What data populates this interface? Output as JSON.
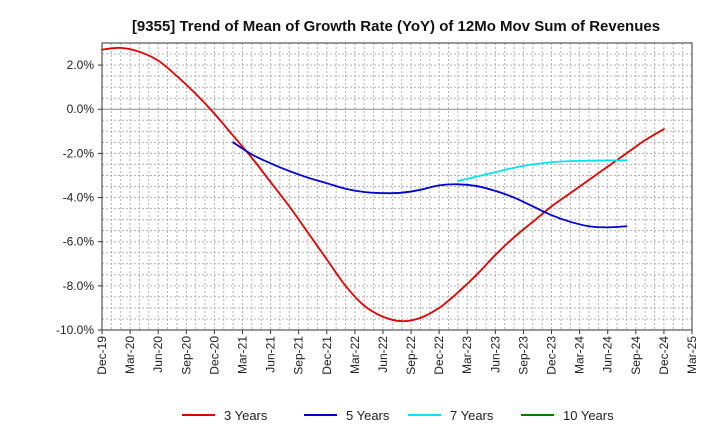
{
  "chart_data": {
    "type": "line",
    "title": "[9355]  Trend of Mean of Growth Rate (YoY) of 12Mo Mov Sum of Revenues",
    "xlabel": "",
    "ylabel": "",
    "ylim": [
      -10,
      3
    ],
    "y_ticks": [
      2,
      0,
      -2,
      -4,
      -6,
      -8,
      -10
    ],
    "y_tick_labels": [
      "2.0%",
      "0.0%",
      "-2.0%",
      "-4.0%",
      "-6.0%",
      "-8.0%",
      "-10.0%"
    ],
    "x_range_months": [
      0,
      63
    ],
    "x_tick_months": [
      0,
      3,
      6,
      9,
      12,
      15,
      18,
      21,
      24,
      27,
      30,
      33,
      36,
      39,
      42,
      45,
      48,
      51,
      54,
      57,
      60,
      63
    ],
    "x_tick_labels": [
      "Dec-19",
      "Mar-20",
      "Jun-20",
      "Sep-20",
      "Dec-20",
      "Mar-21",
      "Jun-21",
      "Sep-21",
      "Dec-21",
      "Mar-22",
      "Jun-22",
      "Sep-22",
      "Dec-22",
      "Mar-23",
      "Jun-23",
      "Sep-23",
      "Dec-23",
      "Mar-24",
      "Jun-24",
      "Sep-24",
      "Dec-24",
      "Mar-25"
    ],
    "grid": true,
    "legend_position": "bottom",
    "series": [
      {
        "name": "3 Years",
        "color": "#e00000",
        "points": [
          [
            0,
            2.7
          ],
          [
            2,
            2.78
          ],
          [
            4,
            2.6
          ],
          [
            6,
            2.2
          ],
          [
            8,
            1.5
          ],
          [
            10,
            0.7
          ],
          [
            12,
            -0.2
          ],
          [
            14,
            -1.2
          ],
          [
            16,
            -2.2
          ],
          [
            18,
            -3.3
          ],
          [
            20,
            -4.4
          ],
          [
            22,
            -5.6
          ],
          [
            24,
            -6.8
          ],
          [
            26,
            -8.0
          ],
          [
            28,
            -8.9
          ],
          [
            30,
            -9.4
          ],
          [
            32,
            -9.6
          ],
          [
            34,
            -9.45
          ],
          [
            36,
            -9.0
          ],
          [
            38,
            -8.3
          ],
          [
            40,
            -7.5
          ],
          [
            42,
            -6.6
          ],
          [
            44,
            -5.8
          ],
          [
            46,
            -5.1
          ],
          [
            48,
            -4.4
          ],
          [
            50,
            -3.8
          ],
          [
            52,
            -3.2
          ],
          [
            54,
            -2.6
          ],
          [
            56,
            -2.0
          ],
          [
            58,
            -1.4
          ],
          [
            60,
            -0.9
          ]
        ]
      },
      {
        "name": "5 Years",
        "color": "#0000cc",
        "points": [
          [
            14,
            -1.5
          ],
          [
            16,
            -2.05
          ],
          [
            18,
            -2.45
          ],
          [
            20,
            -2.8
          ],
          [
            22,
            -3.1
          ],
          [
            24,
            -3.35
          ],
          [
            26,
            -3.6
          ],
          [
            28,
            -3.75
          ],
          [
            30,
            -3.8
          ],
          [
            32,
            -3.78
          ],
          [
            34,
            -3.65
          ],
          [
            36,
            -3.45
          ],
          [
            38,
            -3.4
          ],
          [
            40,
            -3.48
          ],
          [
            42,
            -3.7
          ],
          [
            44,
            -4.0
          ],
          [
            46,
            -4.4
          ],
          [
            48,
            -4.8
          ],
          [
            50,
            -5.1
          ],
          [
            52,
            -5.3
          ],
          [
            54,
            -5.35
          ],
          [
            56,
            -5.3
          ]
        ]
      },
      {
        "name": "7 Years",
        "color": "#00e5ee",
        "points": [
          [
            38,
            -3.25
          ],
          [
            40,
            -3.05
          ],
          [
            42,
            -2.85
          ],
          [
            44,
            -2.65
          ],
          [
            46,
            -2.5
          ],
          [
            48,
            -2.4
          ],
          [
            50,
            -2.35
          ],
          [
            52,
            -2.33
          ],
          [
            54,
            -2.32
          ],
          [
            56,
            -2.32
          ]
        ]
      },
      {
        "name": "10 Years",
        "color": "#008000",
        "points": []
      }
    ]
  }
}
